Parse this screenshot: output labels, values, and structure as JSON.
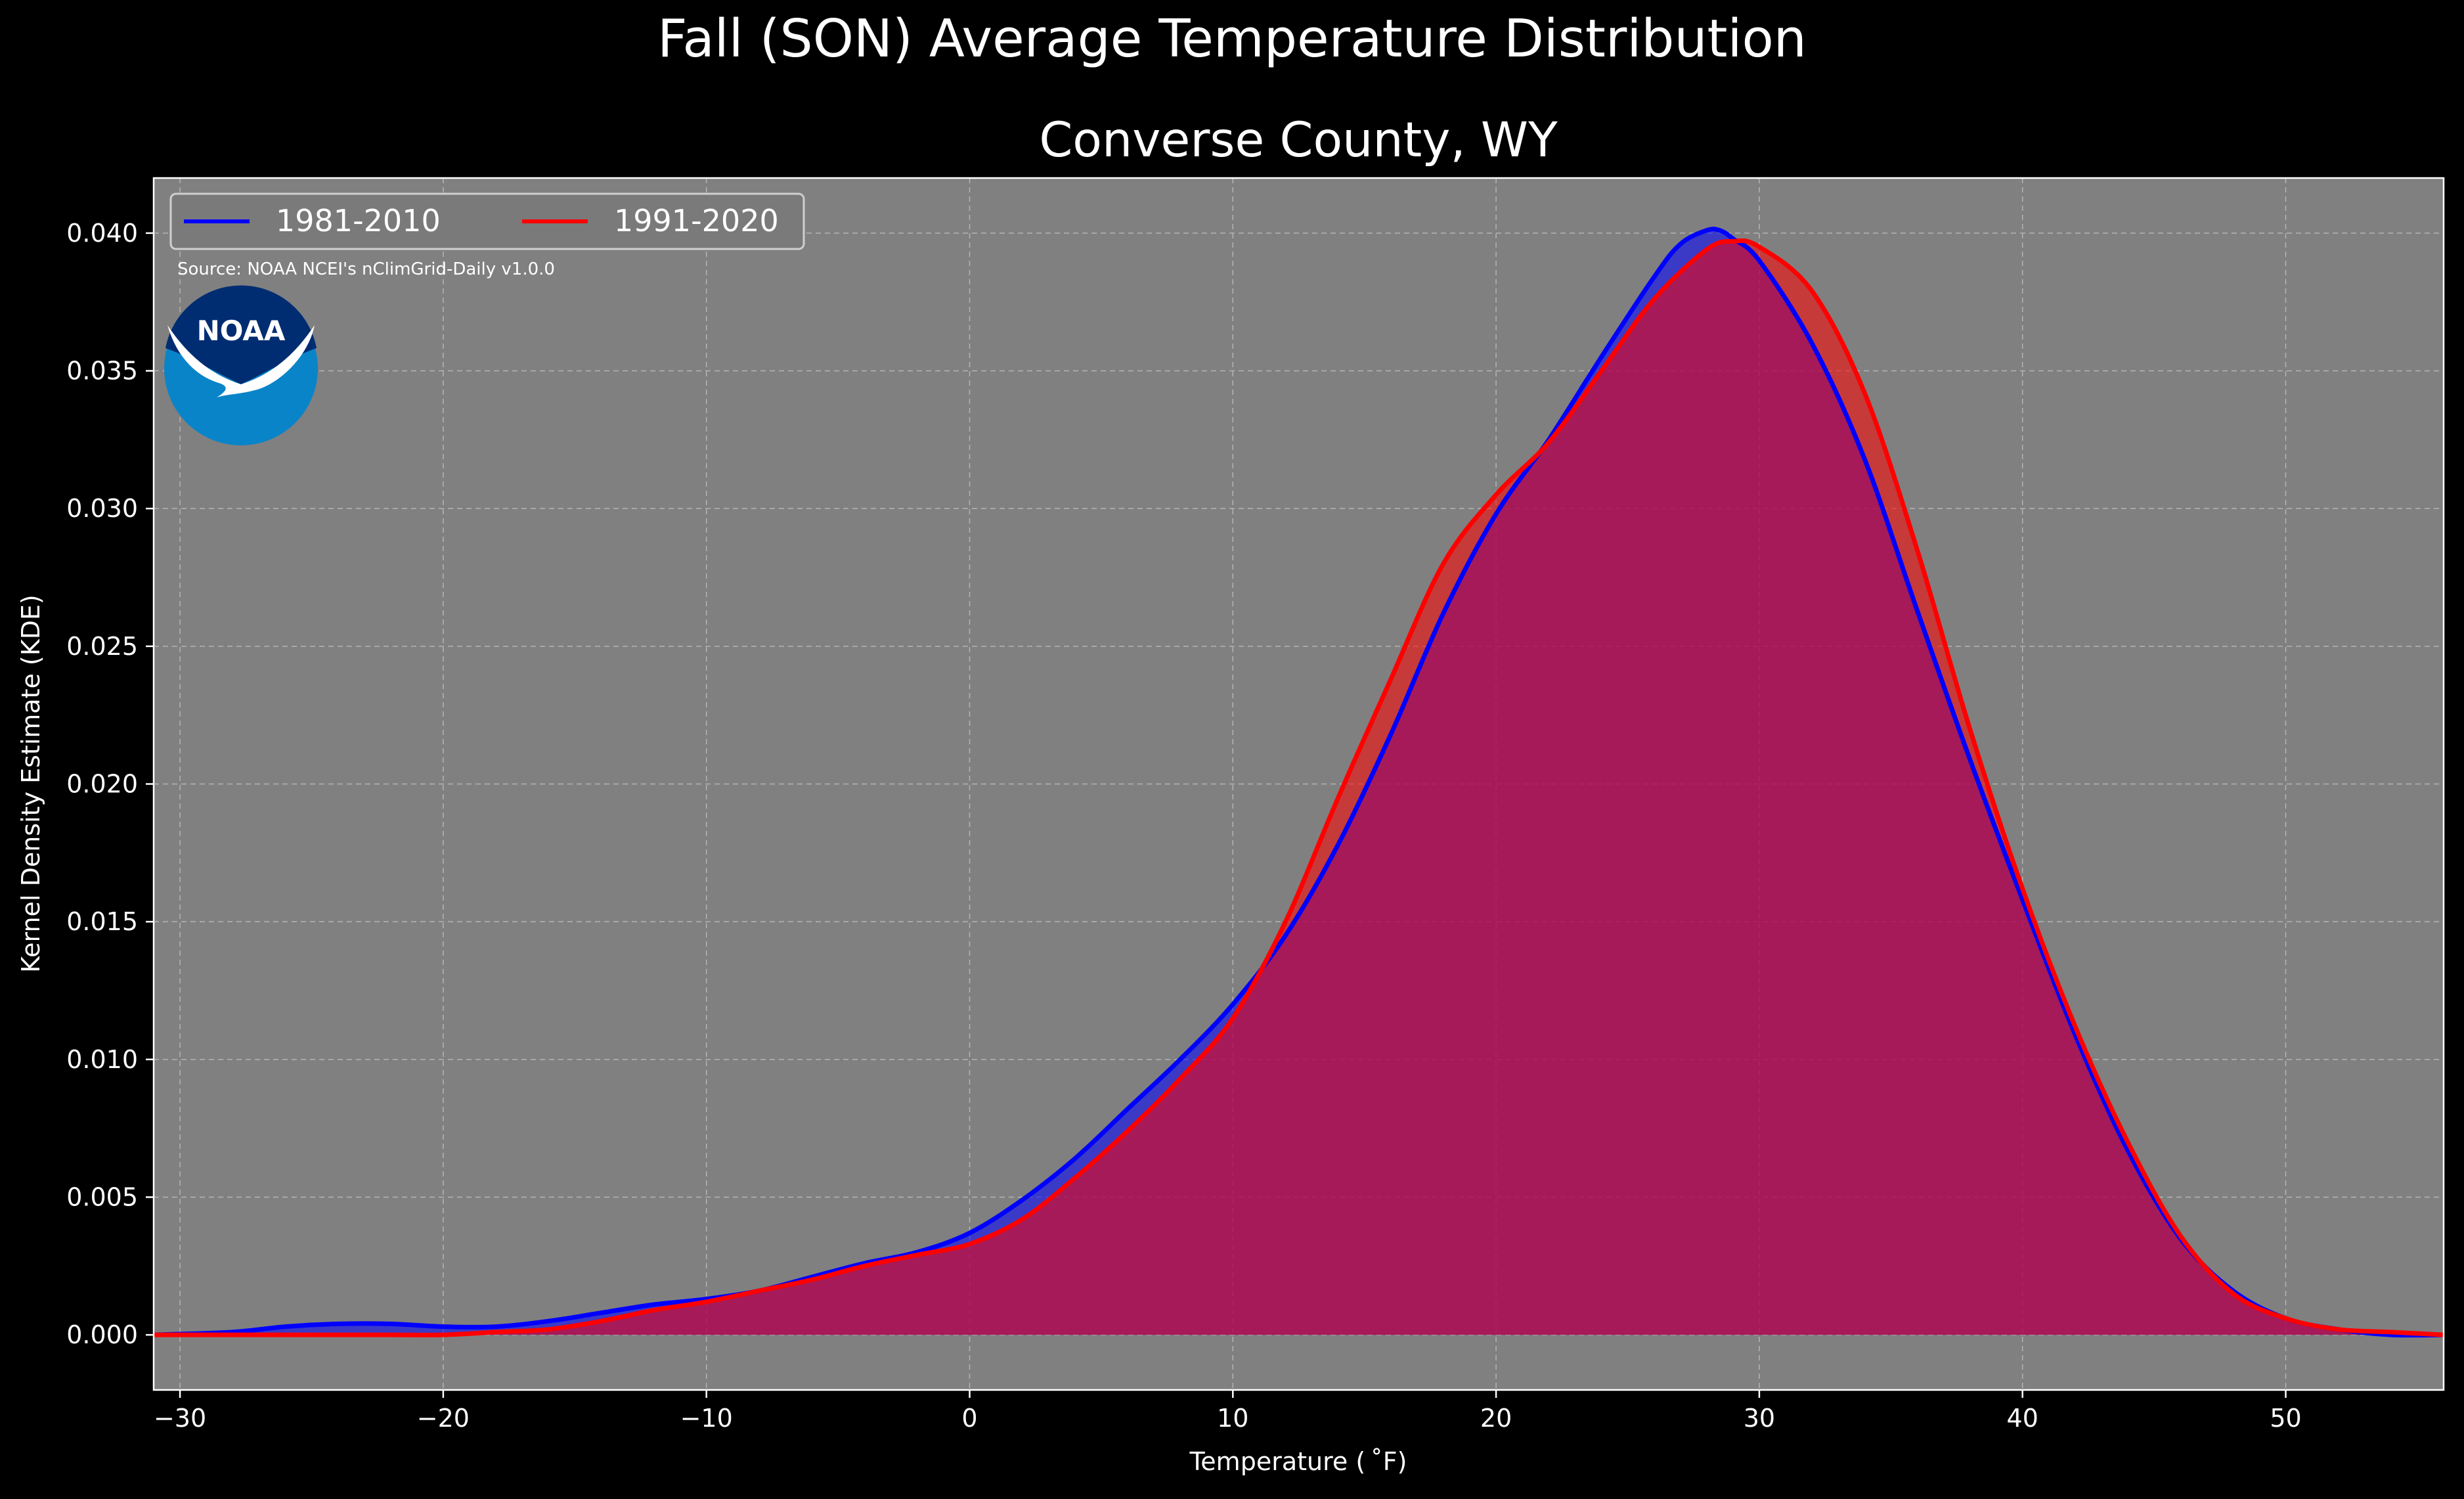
{
  "suptitle": "Fall (SON) Average Temperature Distribution",
  "chart_data": {
    "type": "area",
    "title": "Converse County, WY",
    "xlabel": "Temperature ($^\\circ$F)",
    "xlabel_display": "Temperature ( ˚F)",
    "ylabel": "Kernel Density Estimate (KDE)",
    "xlim": [
      -31,
      56
    ],
    "ylim": [
      -0.002,
      0.042
    ],
    "xticks": [
      -30,
      -20,
      -10,
      0,
      10,
      20,
      30,
      40,
      50
    ],
    "xtick_labels": [
      "−30",
      "−20",
      "−10",
      "0",
      "10",
      "20",
      "30",
      "40",
      "50"
    ],
    "yticks": [
      0.0,
      0.005,
      0.01,
      0.015,
      0.02,
      0.025,
      0.03,
      0.035,
      0.04
    ],
    "ytick_labels": [
      "0.000",
      "0.005",
      "0.010",
      "0.015",
      "0.020",
      "0.025",
      "0.030",
      "0.035",
      "0.040"
    ],
    "grid": true,
    "legend_position": "top-left",
    "annotation": "Source: NOAA NCEI's nClimGrid-Daily v1.0.0",
    "logo_text": "NOAA",
    "series": [
      {
        "name": "1981-2010",
        "color": "#0000ff",
        "fill": "#0000ff",
        "x": [
          -31,
          -28,
          -26,
          -24,
          -22,
          -20,
          -18,
          -16,
          -14,
          -12,
          -10,
          -8,
          -6,
          -4,
          -2,
          0,
          2,
          4,
          6,
          8,
          10,
          12,
          14,
          16,
          18,
          20,
          22,
          24,
          26,
          27,
          28,
          28.5,
          29,
          30,
          32,
          34,
          36,
          38,
          40,
          42,
          44,
          46,
          48,
          50,
          52,
          54,
          56
        ],
        "y": [
          0.0,
          0.0001,
          0.0003,
          0.0004,
          0.0004,
          0.0003,
          0.0003,
          0.0005,
          0.0008,
          0.0011,
          0.0013,
          0.0016,
          0.0021,
          0.0026,
          0.003,
          0.0037,
          0.0049,
          0.0064,
          0.0082,
          0.01,
          0.012,
          0.0145,
          0.0178,
          0.0218,
          0.0262,
          0.0298,
          0.0325,
          0.0355,
          0.0384,
          0.0396,
          0.0401,
          0.0401,
          0.0398,
          0.039,
          0.036,
          0.0318,
          0.0263,
          0.0209,
          0.0158,
          0.0109,
          0.0067,
          0.0035,
          0.0016,
          0.0006,
          0.0002,
          0.0,
          0.0
        ]
      },
      {
        "name": "1991-2020",
        "color": "#ff0000",
        "fill": "#ff0000",
        "x": [
          -31,
          -28,
          -26,
          -24,
          -22,
          -20,
          -18,
          -16,
          -14,
          -12,
          -10,
          -8,
          -6,
          -4,
          -2,
          0,
          2,
          4,
          6,
          8,
          10,
          12,
          14,
          16,
          18,
          20,
          22,
          24,
          26,
          28,
          29,
          30,
          32,
          34,
          36,
          38,
          40,
          42,
          44,
          46,
          48,
          50,
          52,
          54,
          56
        ],
        "y": [
          0.0,
          0.0,
          0.0,
          0.0,
          0.0,
          0.0,
          0.0001,
          0.0002,
          0.0005,
          0.0009,
          0.0012,
          0.0016,
          0.002,
          0.0025,
          0.0029,
          0.0033,
          0.0042,
          0.0057,
          0.0074,
          0.0093,
          0.0115,
          0.015,
          0.0195,
          0.0238,
          0.028,
          0.0305,
          0.0324,
          0.035,
          0.0376,
          0.0394,
          0.0397,
          0.0395,
          0.0379,
          0.0342,
          0.0285,
          0.022,
          0.0162,
          0.0112,
          0.007,
          0.0036,
          0.0015,
          0.0006,
          0.0002,
          0.0001,
          0.0
        ]
      }
    ]
  }
}
